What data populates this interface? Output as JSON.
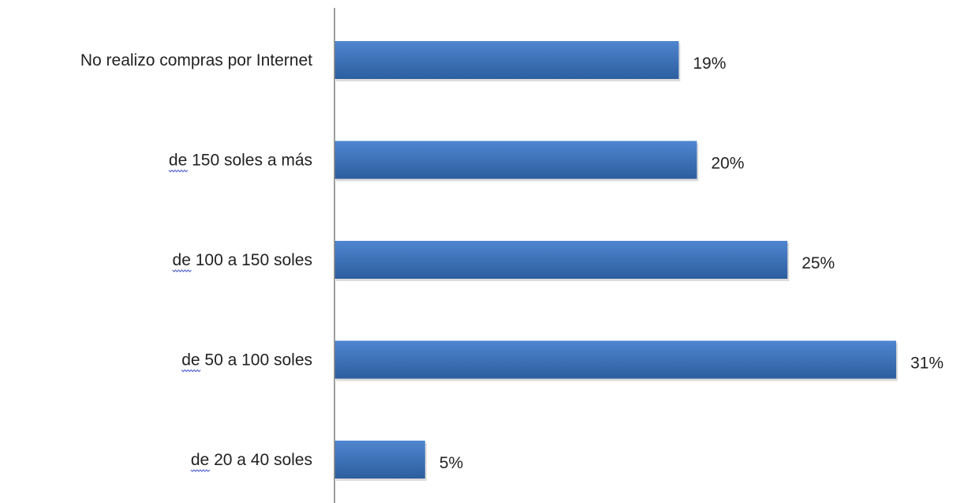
{
  "chart_data": {
    "type": "bar",
    "orientation": "horizontal",
    "categories": [
      "No realizo compras por Internet",
      "de 150 soles a más",
      "de 100 a 150 soles",
      "de 50 a 100 soles",
      "de 20 a 40 soles"
    ],
    "values": [
      19,
      20,
      25,
      31,
      5
    ],
    "value_labels": [
      "19%",
      "20%",
      "25%",
      "31%",
      "5%"
    ],
    "unit": "%",
    "title": "",
    "xlabel": "",
    "ylabel": "",
    "xlim": [
      0,
      31
    ],
    "grid": false,
    "legend": "none",
    "colors": {
      "bar_top": "#4f86d0",
      "bar_bottom": "#2c5e9e",
      "axis": "#7f7f7f",
      "text": "#222222",
      "spellcheck_underline": "#5b6bd6"
    }
  }
}
